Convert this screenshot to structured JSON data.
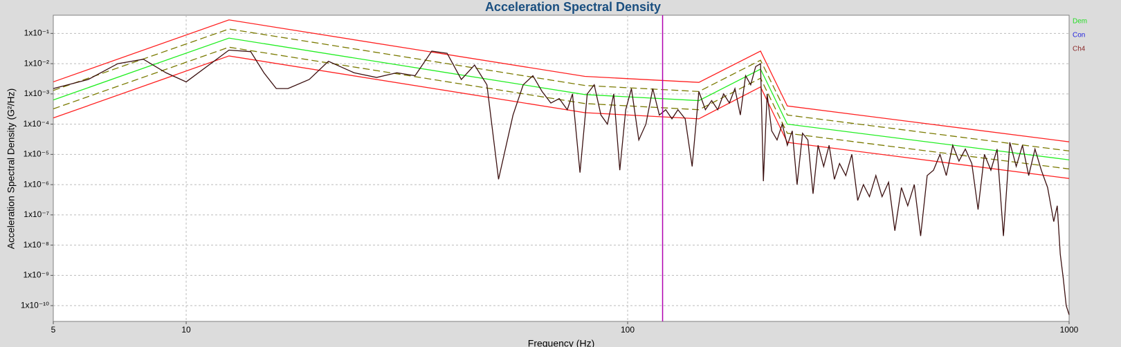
{
  "chart_data": {
    "type": "line",
    "title": "Acceleration Spectral Density",
    "x_label": "Frequency (Hz)",
    "y_label": "Acceleration Spectral Density (G²/Hz)",
    "log_x": true,
    "log_y": true,
    "grid": true,
    "xlim": [
      5,
      1000
    ],
    "ylim": [
      3e-11,
      0.4
    ],
    "xticks": [
      5,
      10,
      100,
      1000
    ],
    "yticks": [
      {
        "value": 0.1,
        "label": "1x10⁻¹"
      },
      {
        "value": 0.01,
        "label": "1x10⁻²"
      },
      {
        "value": 0.001,
        "label": "1x10⁻³"
      },
      {
        "value": 0.0001,
        "label": "1x10⁻⁴"
      },
      {
        "value": 1e-05,
        "label": "1x10⁻⁵"
      },
      {
        "value": 1e-06,
        "label": "1x10⁻⁶"
      },
      {
        "value": 1e-07,
        "label": "1x10⁻⁷"
      },
      {
        "value": 1e-08,
        "label": "1x10⁻⁸"
      },
      {
        "value": 1e-09,
        "label": "1x10⁻⁹"
      },
      {
        "value": 1e-10,
        "label": "1x10⁻¹⁰"
      }
    ],
    "cursor_x": 120,
    "cursor_color": "#b000b0",
    "legend_position": "right",
    "legend": [
      {
        "name": "Dem",
        "color": "#22dd22"
      },
      {
        "name": "Con",
        "color": "#2222dd"
      },
      {
        "name": "Ch4",
        "color": "#8b2a2a"
      }
    ],
    "series": [
      {
        "color": "#ff2020",
        "dash": false,
        "x": [
          5,
          12.5,
          80,
          145,
          200,
          230,
          1000
        ],
        "values": [
          0.0025,
          0.28,
          0.0038,
          0.0024,
          0.026,
          0.0004,
          2.6e-05
        ]
      },
      {
        "color": "#7a7a00",
        "dash": true,
        "x": [
          5,
          12.5,
          80,
          145,
          200,
          230,
          1000
        ],
        "values": [
          0.0013,
          0.14,
          0.0019,
          0.0012,
          0.013,
          0.0002,
          1.3e-05
        ]
      },
      {
        "color": "#22ee22",
        "dash": false,
        "x": [
          5,
          12.5,
          80,
          145,
          200,
          230,
          1000
        ],
        "values": [
          0.00063,
          0.07,
          0.00095,
          0.0006,
          0.0066,
          0.0001,
          6.6e-06
        ]
      },
      {
        "color": "#7a7a00",
        "dash": true,
        "x": [
          5,
          12.5,
          80,
          145,
          200,
          230,
          1000
        ],
        "values": [
          0.00032,
          0.035,
          0.00048,
          0.0003,
          0.0033,
          5e-05,
          3.3e-06
        ]
      },
      {
        "color": "#ff2020",
        "dash": false,
        "x": [
          5,
          12.5,
          80,
          145,
          200,
          230,
          1000
        ],
        "values": [
          0.00016,
          0.018,
          0.00024,
          0.00015,
          0.0017,
          2.5e-05,
          1.6e-06
        ]
      },
      {
        "color": "#3b1010",
        "dash": false,
        "x": [
          5,
          6,
          7,
          8,
          9,
          10,
          12.5,
          14,
          15,
          16,
          17,
          19,
          21,
          24,
          27,
          30,
          33,
          36,
          39,
          42,
          45,
          48,
          51,
          55,
          58,
          61,
          64,
          67,
          70,
          73,
          75,
          78,
          81,
          84,
          87,
          90,
          93,
          96,
          99,
          102,
          106,
          110,
          114,
          118,
          122,
          126,
          130,
          135,
          140,
          145,
          150,
          155,
          160,
          165,
          170,
          175,
          180,
          185,
          190,
          195,
          200,
          203,
          207,
          212,
          218,
          224,
          230,
          236,
          242,
          249,
          256,
          263,
          270,
          278,
          286,
          294,
          302,
          312,
          322,
          332,
          342,
          353,
          365,
          377,
          390,
          403,
          417,
          431,
          446,
          461,
          477,
          493,
          510,
          527,
          545,
          563,
          582,
          602,
          622,
          643,
          665,
          687,
          710,
          734,
          759,
          784,
          810,
          837,
          865,
          894,
          923,
          940,
          955,
          970,
          985,
          1000
        ],
        "values": [
          0.0015,
          0.003,
          0.01,
          0.014,
          0.005,
          0.0025,
          0.028,
          0.025,
          0.005,
          0.0015,
          0.0015,
          0.003,
          0.012,
          0.005,
          0.0035,
          0.005,
          0.004,
          0.026,
          0.022,
          0.003,
          0.009,
          0.002,
          1.5e-06,
          0.0002,
          0.002,
          0.004,
          0.0012,
          0.0005,
          0.0007,
          0.0003,
          0.001,
          2.5e-06,
          0.001,
          0.002,
          0.0002,
          0.0001,
          0.001,
          3e-06,
          0.0003,
          0.0015,
          3e-05,
          0.0001,
          0.0015,
          0.0002,
          0.0003,
          0.00015,
          0.0003,
          0.00015,
          4e-06,
          0.0012,
          0.0003,
          0.0006,
          0.0003,
          0.001,
          0.0005,
          0.0015,
          0.0002,
          0.004,
          0.002,
          0.008,
          0.01,
          1.3e-06,
          0.001,
          6e-05,
          3e-05,
          0.0001,
          2e-05,
          6e-05,
          1e-06,
          5e-05,
          3e-05,
          5e-07,
          2e-05,
          4e-06,
          2e-05,
          1.5e-06,
          5e-06,
          2e-06,
          1e-05,
          3e-07,
          1e-06,
          4e-07,
          2e-06,
          4e-07,
          1.2e-06,
          3e-08,
          8e-07,
          2e-07,
          1e-06,
          2e-08,
          2e-06,
          3e-06,
          1e-05,
          2e-06,
          2e-05,
          6e-06,
          1.5e-05,
          5e-06,
          1.5e-07,
          1e-05,
          3e-06,
          1.5e-05,
          2e-08,
          2.5e-05,
          4e-06,
          2e-05,
          2e-06,
          1.5e-05,
          3e-06,
          8e-07,
          6e-08,
          2e-07,
          5e-09,
          8e-10,
          1e-10,
          5e-11
        ]
      }
    ]
  }
}
